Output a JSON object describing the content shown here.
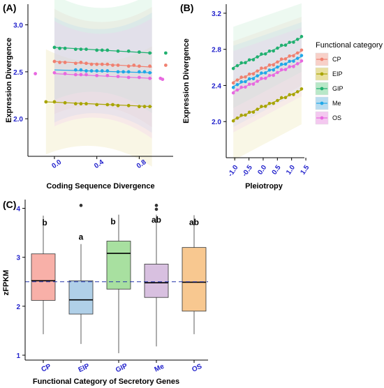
{
  "chart_data": [
    {
      "panel": "(A)",
      "type": "scatter",
      "xlabel": "Coding Sequence Divergence",
      "ylabel": "Expression Divergence",
      "xlim": [
        -0.25,
        1.12
      ],
      "ylim": [
        1.6,
        3.22
      ],
      "xticks": [
        0.0,
        0.4,
        0.8
      ],
      "yticks": [
        2.0,
        2.5,
        3.0
      ],
      "series": [
        {
          "name": "CP",
          "color": "#f08070",
          "points": [
            [
              0.0,
              2.61
            ],
            [
              0.05,
              2.6
            ],
            [
              0.1,
              2.6
            ],
            [
              0.2,
              2.59
            ],
            [
              0.25,
              2.6
            ],
            [
              0.3,
              2.59
            ],
            [
              0.35,
              2.58
            ],
            [
              0.4,
              2.58
            ],
            [
              0.45,
              2.58
            ],
            [
              0.5,
              2.58
            ],
            [
              0.55,
              2.57
            ],
            [
              0.6,
              2.57
            ],
            [
              0.7,
              2.56
            ],
            [
              0.75,
              2.57
            ],
            [
              0.8,
              2.56
            ],
            [
              0.9,
              2.56
            ]
          ],
          "fit": [
            [
              0.0,
              2.61
            ],
            [
              0.92,
              2.55
            ]
          ]
        },
        {
          "name": "EIP",
          "color": "#a8a400",
          "points": [
            [
              -0.08,
              2.18
            ],
            [
              0.0,
              2.18
            ],
            [
              0.1,
              2.17
            ],
            [
              0.2,
              2.16
            ],
            [
              0.25,
              2.16
            ],
            [
              0.3,
              2.16
            ],
            [
              0.4,
              2.15
            ],
            [
              0.5,
              2.15
            ],
            [
              0.55,
              2.15
            ],
            [
              0.6,
              2.14
            ],
            [
              0.7,
              2.14
            ],
            [
              0.8,
              2.13
            ],
            [
              0.85,
              2.13
            ],
            [
              0.9,
              2.13
            ]
          ],
          "fit": [
            [
              -0.08,
              2.18
            ],
            [
              0.92,
              2.13
            ]
          ]
        },
        {
          "name": "GIP",
          "color": "#20b070",
          "points": [
            [
              0.0,
              2.76
            ],
            [
              0.05,
              2.75
            ],
            [
              0.1,
              2.75
            ],
            [
              0.2,
              2.74
            ],
            [
              0.25,
              2.74
            ],
            [
              0.3,
              2.74
            ],
            [
              0.4,
              2.73
            ],
            [
              0.45,
              2.73
            ],
            [
              0.5,
              2.73
            ],
            [
              0.6,
              2.72
            ],
            [
              0.7,
              2.72
            ],
            [
              0.8,
              2.71
            ],
            [
              0.9,
              2.7
            ],
            [
              1.05,
              2.7
            ]
          ],
          "fit": [
            [
              0.0,
              2.76
            ],
            [
              0.92,
              2.7
            ]
          ]
        },
        {
          "name": "Me",
          "color": "#20a8e8",
          "points": [
            [
              0.2,
              2.52
            ],
            [
              0.25,
              2.52
            ],
            [
              0.3,
              2.51
            ],
            [
              0.35,
              2.51
            ],
            [
              0.4,
              2.51
            ],
            [
              0.45,
              2.51
            ],
            [
              0.5,
              2.51
            ],
            [
              0.6,
              2.5
            ],
            [
              0.65,
              2.5
            ],
            [
              0.7,
              2.5
            ],
            [
              0.8,
              2.5
            ],
            [
              0.85,
              2.5
            ],
            [
              0.9,
              2.49
            ]
          ],
          "fit": [
            [
              0.0,
              2.52
            ],
            [
              0.92,
              2.49
            ]
          ]
        },
        {
          "name": "OS",
          "color": "#e868e0",
          "points": [
            [
              -0.18,
              2.48
            ],
            [
              0.0,
              2.49
            ],
            [
              0.1,
              2.48
            ],
            [
              0.2,
              2.47
            ],
            [
              0.25,
              2.47
            ],
            [
              0.3,
              2.47
            ],
            [
              0.4,
              2.46
            ],
            [
              0.5,
              2.46
            ],
            [
              0.6,
              2.45
            ],
            [
              0.7,
              2.44
            ],
            [
              0.8,
              2.44
            ],
            [
              0.9,
              2.43
            ],
            [
              1.0,
              2.43
            ]
          ],
          "fit": [
            [
              0.0,
              2.48
            ],
            [
              0.92,
              2.43
            ]
          ]
        }
      ],
      "extra_points": [
        {
          "series": "CP",
          "x": 1.05,
          "y": 2.57
        },
        {
          "series": "OS",
          "x": 1.02,
          "y": 2.42
        }
      ]
    },
    {
      "panel": "(B)",
      "type": "scatter",
      "xlabel": "Pleiotropy",
      "ylabel": "Expression Divergence",
      "xlim": [
        -1.3,
        1.45
      ],
      "ylim": [
        1.6,
        3.3
      ],
      "xticks": [
        -1.0,
        -0.5,
        0.0,
        0.5,
        1.0,
        1.5
      ],
      "xticklabels": [
        "-1.0",
        "-0.5",
        "0.0",
        "0.5",
        "1.0",
        "1.5"
      ],
      "yticks": [
        2.0,
        2.4,
        2.8,
        3.2
      ],
      "series": [
        {
          "name": "CP",
          "color": "#f08070",
          "fit": [
            [
              -1.05,
              2.44
            ],
            [
              1.35,
              2.78
            ]
          ]
        },
        {
          "name": "EIP",
          "color": "#a8a400",
          "fit": [
            [
              -1.05,
              2.02
            ],
            [
              1.35,
              2.35
            ]
          ]
        },
        {
          "name": "GIP",
          "color": "#20b070",
          "fit": [
            [
              -1.05,
              2.6
            ],
            [
              1.35,
              2.93
            ]
          ]
        },
        {
          "name": "Me",
          "color": "#20a8e8",
          "fit": [
            [
              -1.05,
              2.39
            ],
            [
              1.35,
              2.72
            ]
          ]
        },
        {
          "name": "OS",
          "color": "#e868e0",
          "fit": [
            [
              -1.05,
              2.33
            ],
            [
              1.35,
              2.66
            ]
          ]
        }
      ],
      "point_count": 18
    },
    {
      "panel": "(C)",
      "type": "box",
      "xlabel": "Functional Category of Secretory Genes",
      "ylabel": "zFPKM",
      "ylim": [
        0.9,
        4.15
      ],
      "yticks": [
        1,
        2,
        3,
        4
      ],
      "reference_line": 2.5,
      "categories": [
        "CP",
        "EIP",
        "GIP",
        "Me",
        "OS"
      ],
      "boxes": [
        {
          "category": "CP",
          "color": "#f8b0a8",
          "min": 1.43,
          "q1": 2.12,
          "median": 2.52,
          "q3": 3.07,
          "max": 3.85,
          "outliers": [],
          "letter": "b"
        },
        {
          "category": "EIP",
          "color": "#b0d0e8",
          "min": 1.23,
          "q1": 1.84,
          "median": 2.13,
          "q3": 2.52,
          "max": 3.27,
          "outliers": [
            4.06
          ],
          "letter": "a"
        },
        {
          "category": "GIP",
          "color": "#a8e0a0",
          "min": 1.04,
          "q1": 2.35,
          "median": 3.08,
          "q3": 3.33,
          "max": 3.87,
          "outliers": [],
          "letter": "b"
        },
        {
          "category": "Me",
          "color": "#d8c0e0",
          "min": 1.18,
          "q1": 2.18,
          "median": 2.48,
          "q3": 2.86,
          "max": 3.87,
          "outliers": [
            4.06,
            3.98
          ],
          "letter": "ab"
        },
        {
          "category": "OS",
          "color": "#f8c890",
          "min": 1.43,
          "q1": 1.9,
          "median": 2.49,
          "q3": 3.2,
          "max": 3.86,
          "outliers": [],
          "letter": "ab"
        }
      ]
    }
  ],
  "legend": {
    "title": "Functional category",
    "items": [
      {
        "label": "CP",
        "color": "#f08070",
        "fill": "#f8d0c8"
      },
      {
        "label": "EIP",
        "color": "#a8a400",
        "fill": "#e8e0a0"
      },
      {
        "label": "GIP",
        "color": "#20b070",
        "fill": "#b8e8c8"
      },
      {
        "label": "Me",
        "color": "#20a8e8",
        "fill": "#b8dcf0"
      },
      {
        "label": "OS",
        "color": "#e868e0",
        "fill": "#f4c8f0"
      }
    ]
  }
}
